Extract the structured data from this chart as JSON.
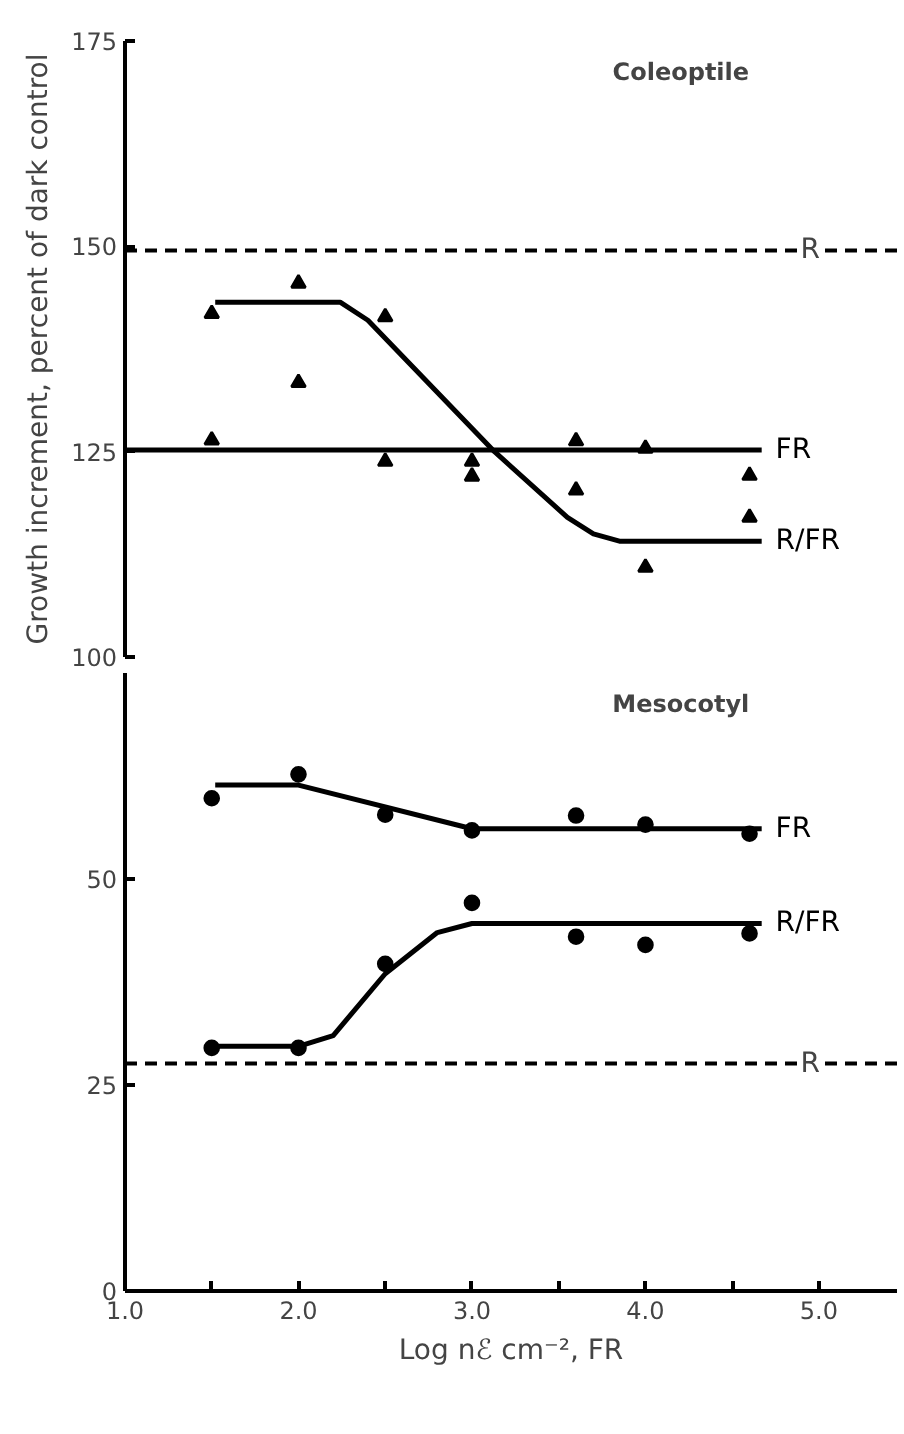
{
  "chart_data": [
    {
      "type": "line",
      "title": "Coleoptile",
      "ylabel": "Growth increment, percent of dark control",
      "xlim": [
        1.0,
        5.45
      ],
      "ylim": [
        100,
        175
      ],
      "yticks": [
        100,
        125,
        150,
        175
      ],
      "tick_labels": "y",
      "grid": false,
      "series": [
        {
          "type": "scatter",
          "marker": "triangle",
          "color": "#000000",
          "x": [
            1.5,
            2.0,
            2.5,
            3.0,
            3.6,
            4.0,
            4.6
          ],
          "values": [
            126.4,
            133.4,
            123.8,
            123.8,
            126.3,
            125.4,
            122.1
          ]
        },
        {
          "type": "scatter",
          "marker": "triangle",
          "color": "#000000",
          "x": [
            1.5,
            2.0,
            2.5,
            3.0,
            3.6,
            4.0,
            4.6
          ],
          "values": [
            141.8,
            145.5,
            141.4,
            122.0,
            120.3,
            110.9,
            117.0
          ]
        },
        {
          "name": "FR",
          "color": "#000000",
          "x": [
            1.0,
            4.67
          ],
          "values": [
            125.2,
            125.2
          ]
        },
        {
          "name": "R/FR",
          "color": "#000000",
          "x": [
            1.52,
            2.24,
            2.4,
            3.13,
            3.55,
            3.7,
            3.85,
            4.67
          ],
          "values": [
            143.2,
            143.2,
            141.0,
            125.0,
            117.0,
            115.0,
            114.1,
            114.1
          ]
        }
      ],
      "ref_lines": [
        {
          "axis": "y",
          "value": 149.5,
          "label": "R",
          "line_style": "dashed"
        }
      ]
    },
    {
      "type": "line",
      "title": "Mesocotyl",
      "xlabel": "Log nℰ cm⁻², FR",
      "xlim": [
        1.0,
        5.45
      ],
      "ylim": [
        0,
        75
      ],
      "yticks": [
        0,
        25,
        50
      ],
      "xticks": [
        {
          "value": 1.0,
          "label": "1.0"
        },
        {
          "value": 1.5,
          "label": null
        },
        {
          "value": 2.0,
          "label": "2.0"
        },
        {
          "value": 2.5,
          "label": null
        },
        {
          "value": 3.0,
          "label": "3.0"
        },
        {
          "value": 3.5,
          "label": null
        },
        {
          "value": 4.0,
          "label": "4.0"
        },
        {
          "value": 4.5,
          "label": null
        },
        {
          "value": 5.0,
          "label": "5.0"
        }
      ],
      "grid": false,
      "series": [
        {
          "type": "scatter",
          "marker": "circle",
          "color": "#000000",
          "x": [
            1.5,
            2.0,
            2.5,
            3.0,
            3.6,
            4.0,
            4.6
          ],
          "values": [
            59.8,
            62.7,
            57.8,
            55.9,
            57.7,
            56.6,
            55.5
          ]
        },
        {
          "type": "scatter",
          "marker": "circle",
          "color": "#000000",
          "x": [
            1.5,
            2.0,
            2.5,
            3.0,
            3.6,
            4.0,
            4.6
          ],
          "values": [
            29.5,
            29.5,
            39.7,
            47.1,
            43.0,
            42.0,
            43.4
          ]
        },
        {
          "name": "FR",
          "color": "#000000",
          "x": [
            1.52,
            2.0,
            3.0,
            4.67
          ],
          "values": [
            61.4,
            61.4,
            56.1,
            56.1
          ]
        },
        {
          "name": "R/FR",
          "color": "#000000",
          "x": [
            1.52,
            2.0,
            2.2,
            2.5,
            2.8,
            3.0,
            4.67
          ],
          "values": [
            29.7,
            29.7,
            31.0,
            38.5,
            43.5,
            44.6,
            44.6
          ]
        }
      ],
      "ref_lines": [
        {
          "axis": "y",
          "value": 27.6,
          "label": "R",
          "line_style": "dashed"
        }
      ]
    }
  ]
}
